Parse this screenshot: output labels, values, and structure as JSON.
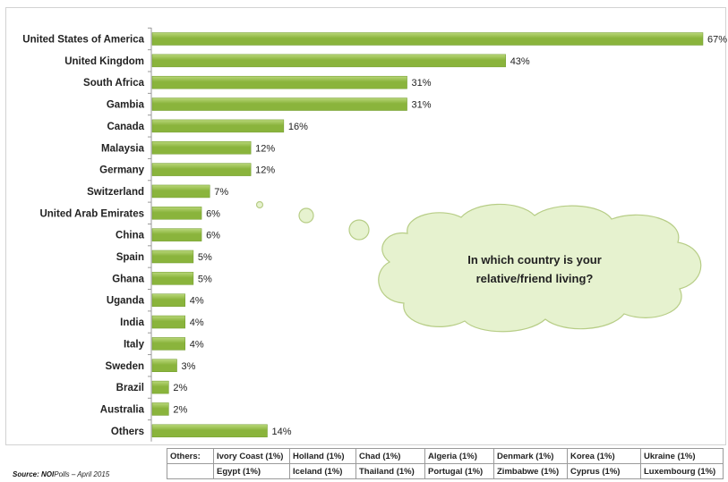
{
  "chart_data": {
    "type": "bar",
    "orientation": "horizontal",
    "categories": [
      "United States of America",
      "United Kingdom",
      "South Africa",
      "Gambia",
      "Canada",
      "Malaysia",
      "Germany",
      "Switzerland",
      "United Arab Emirates",
      "China",
      "Spain",
      "Ghana",
      "Uganda",
      "India",
      "Italy",
      "Sweden",
      "Brazil",
      "Australia",
      "Others"
    ],
    "values": [
      67,
      43,
      31,
      31,
      16,
      12,
      12,
      7,
      6,
      6,
      5,
      5,
      4,
      4,
      4,
      3,
      2,
      2,
      14
    ],
    "value_labels": [
      "67%",
      "43%",
      "31%",
      "31%",
      "16%",
      "12%",
      "12%",
      "7%",
      "6%",
      "6%",
      "5%",
      "5%",
      "4%",
      "4%",
      "4%",
      "3%",
      "2%",
      "2%",
      "14%"
    ],
    "xlim": [
      0,
      67
    ],
    "grid": false,
    "legend": "none",
    "bar_color": "#8ab43c",
    "bar_highlight": "#b9d77a",
    "annotation": {
      "line1": "In which country is your",
      "line2": "relative/friend living?",
      "fill": "#e6f2cf",
      "stroke": "#b7cd86"
    }
  },
  "others_table": {
    "header": "Others:",
    "rows": [
      [
        "Ivory Coast (1%)",
        "Holland (1%)",
        "Chad (1%)",
        "Algeria (1%)",
        "Denmark (1%)",
        "Korea (1%)",
        "Ukraine (1%)"
      ],
      [
        "Egypt (1%)",
        "Iceland (1%)",
        "Thailand (1%)",
        "Portugal (1%)",
        "Zimbabwe (1%)",
        "Cyprus (1%)",
        "Luxembourg (1%)"
      ]
    ]
  },
  "source": {
    "label": "Source:",
    "org": "NOI",
    "text": "Polls – April 2015"
  }
}
